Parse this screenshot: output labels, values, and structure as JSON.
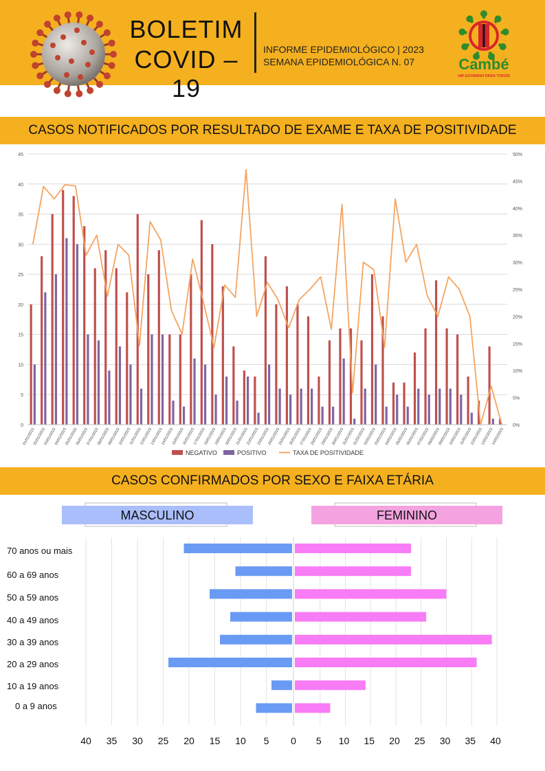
{
  "header": {
    "title_line1": "BOLETIM",
    "title_line2": "COVID – 19",
    "subtitle_line1": "INFORME EPIDEMIOLÓGICO | 2023",
    "subtitle_line2": "SEMANA EPIDEMIOLÓGICA  N. 07",
    "logo_text": "Cambé",
    "logo_tagline": "UM GOVERNO PARA TODOS",
    "colors": {
      "banner": "#f5b01f",
      "logo_green": "#2e8b2e",
      "logo_red": "#d7262b"
    }
  },
  "section1_title": "CASOS NOTIFICADOS POR RESULTADO DE EXAME E TAXA DE POSITIVIDADE",
  "section2_title": "CASOS CONFIRMADOS POR SEXO E FAIXA ETÁRIA",
  "chart_data": [
    {
      "type": "bar",
      "title": "",
      "categories": [
        "01/01/2023",
        "02/01/2023",
        "03/01/2023",
        "04/01/2023",
        "05/01/2023",
        "06/01/2023",
        "07/01/2023",
        "08/01/2023",
        "09/01/2023",
        "10/01/2023",
        "11/01/2023",
        "12/01/2023",
        "13/01/2023",
        "14/01/2023",
        "15/01/2023",
        "16/01/2023",
        "17/01/2023",
        "18/01/2023",
        "19/01/2023",
        "20/01/2023",
        "21/01/2023",
        "22/01/2023",
        "23/01/2023",
        "24/01/2023",
        "25/01/2023",
        "26/01/2023",
        "27/01/2023",
        "28/01/2023",
        "29/01/2023",
        "30/01/2023",
        "31/01/2023",
        "01/02/2023",
        "02/02/2023",
        "03/02/2023",
        "04/02/2023",
        "05/02/2023",
        "06/02/2023",
        "07/02/2023",
        "08/02/2023",
        "09/02/2023",
        "10/02/2023",
        "11/02/2023",
        "12/02/2023",
        "13/02/2023",
        "14/02/2023"
      ],
      "series": [
        {
          "name": "NEGATIVO",
          "color": "#c0504d",
          "values": [
            20,
            28,
            35,
            39,
            38,
            33,
            26,
            29,
            26,
            22,
            35,
            25,
            29,
            15,
            15,
            25,
            34,
            30,
            23,
            13,
            9,
            8,
            28,
            20,
            23,
            20,
            18,
            8,
            14,
            16,
            16,
            14,
            25,
            18,
            7,
            7,
            12,
            16,
            24,
            16,
            15,
            8,
            4,
            13,
            1
          ]
        },
        {
          "name": "POSITIVO",
          "color": "#8064a2",
          "values": [
            10,
            22,
            25,
            31,
            30,
            15,
            14,
            9,
            13,
            10,
            6,
            15,
            15,
            4,
            3,
            11,
            10,
            5,
            8,
            4,
            8,
            2,
            10,
            6,
            5,
            6,
            6,
            3,
            3,
            11,
            1,
            6,
            10,
            3,
            5,
            3,
            6,
            5,
            6,
            6,
            5,
            2,
            0,
            1,
            0
          ]
        },
        {
          "name": "TAXA DE POSITIVIDADE",
          "color": "#f4a460",
          "axis": "right",
          "values": [
            33.3,
            44.0,
            41.7,
            44.3,
            44.1,
            31.3,
            35.0,
            23.7,
            33.3,
            31.3,
            14.6,
            37.5,
            34.1,
            21.1,
            16.7,
            30.6,
            22.7,
            14.3,
            25.8,
            23.5,
            47.1,
            20.0,
            26.3,
            23.1,
            17.9,
            23.1,
            25.0,
            27.3,
            17.6,
            40.7,
            5.9,
            30.0,
            28.6,
            14.3,
            41.7,
            30.0,
            33.3,
            23.8,
            20.0,
            27.3,
            25.0,
            20.0,
            0,
            7.1,
            0
          ]
        }
      ],
      "ylim": [
        0,
        45
      ],
      "yticks": [
        0,
        5,
        10,
        15,
        20,
        25,
        30,
        35,
        40,
        45
      ],
      "y2lim": [
        0,
        50
      ],
      "y2ticks": [
        "0%",
        "5%",
        "10%",
        "15%",
        "20%",
        "25%",
        "30%",
        "35%",
        "40%",
        "45%",
        "50%"
      ],
      "grid": true,
      "legend": "bottom"
    },
    {
      "type": "bar",
      "orientation": "horizontal-butterfly",
      "title": "",
      "categories": [
        "70 anos ou mais",
        "60 a 69 anos",
        "50 a 59 anos",
        "40 a 49 anos",
        "30 a 39 anos",
        "20 a 29 anos",
        "10 a 19 anos",
        "0 a 9 anos"
      ],
      "series": [
        {
          "name": "MASCULINO",
          "color": "#6a9bf4",
          "values": [
            21,
            11,
            16,
            12,
            14,
            24,
            4,
            7
          ]
        },
        {
          "name": "FEMININO",
          "color": "#f87cf5",
          "values": [
            23,
            23,
            30,
            26,
            39,
            36,
            14,
            7
          ]
        }
      ],
      "left_ticks": [
        "40",
        "35",
        "30",
        "25",
        "20",
        "15",
        "10",
        "5"
      ],
      "right_ticks": [
        "0",
        "5",
        "10",
        "15",
        "20",
        "25",
        "30",
        "35",
        "40"
      ],
      "xlim": [
        0,
        40
      ],
      "grid": true
    }
  ]
}
